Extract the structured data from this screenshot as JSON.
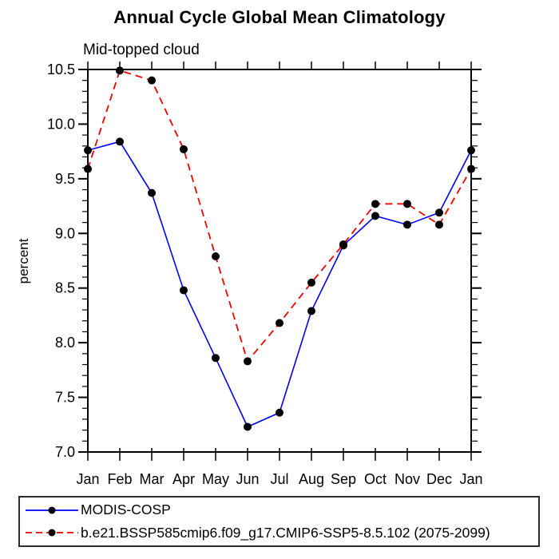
{
  "chart_data": {
    "type": "line",
    "title": "Annual Cycle Global Mean Climatology",
    "subtitle": "Mid-topped cloud",
    "ylabel": "percent",
    "categories": [
      "Jan",
      "Feb",
      "Mar",
      "Apr",
      "May",
      "Jun",
      "Jul",
      "Aug",
      "Sep",
      "Oct",
      "Nov",
      "Dec",
      "Jan"
    ],
    "series": [
      {
        "name": "MODIS-COSP",
        "color": "#0000ee",
        "line_style": "solid",
        "marker": "filled-circle",
        "marker_color": "#000000",
        "values": [
          9.76,
          9.84,
          9.37,
          8.48,
          7.86,
          7.23,
          7.36,
          8.29,
          8.89,
          9.16,
          9.08,
          9.19,
          9.76
        ]
      },
      {
        "name": "b.e21.BSSP585cmip6.f09_g17.CMIP6-SSP5-8.5.102 (2075-2099)",
        "color": "#ee0000",
        "line_style": "dashed",
        "marker": "filled-circle",
        "marker_color": "#000000",
        "values": [
          9.59,
          10.49,
          10.4,
          9.77,
          8.79,
          7.83,
          8.18,
          8.55,
          8.9,
          9.27,
          9.27,
          9.08,
          9.59
        ]
      }
    ],
    "ylim": [
      7.0,
      10.5
    ],
    "ytick_step": 0.5,
    "yminor_step": 0.1,
    "ytick_label_format": "one-decimal",
    "grid": false,
    "axis_color": "#000000",
    "legend_position": "bottom-left-box"
  }
}
